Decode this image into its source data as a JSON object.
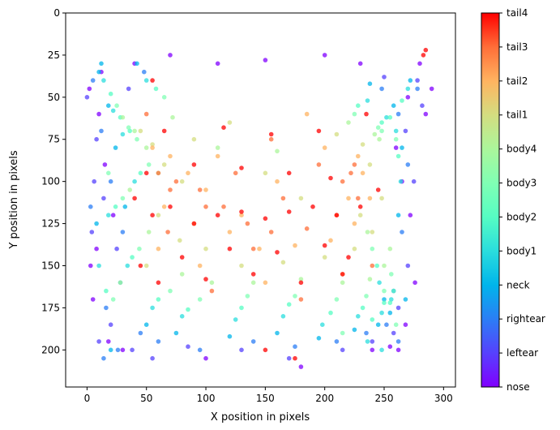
{
  "chart_data": {
    "type": "scatter",
    "title": "",
    "xlabel": "X position in pixels",
    "ylabel": "Y position in pixels",
    "xlim": [
      -18,
      310
    ],
    "ylim": [
      222,
      0
    ],
    "y_inverted": true,
    "x_ticks": [
      0,
      50,
      100,
      150,
      200,
      250,
      300
    ],
    "y_ticks": [
      0,
      25,
      50,
      75,
      100,
      125,
      150,
      175,
      200
    ],
    "grid": false,
    "colormap": "rainbow",
    "colorbar": {
      "position": "right",
      "labels": [
        "nose",
        "leftear",
        "rightear",
        "neck",
        "body1",
        "body2",
        "body3",
        "body4",
        "tail1",
        "tail2",
        "tail3",
        "tail4"
      ]
    },
    "series": [
      {
        "name": "nose",
        "color": "#8000ff",
        "x": [
          2,
          10,
          15,
          22,
          40,
          70,
          110,
          150,
          200,
          230,
          262,
          276,
          285,
          290,
          5,
          18,
          255,
          268,
          272,
          8,
          30,
          100,
          180,
          240,
          265,
          12,
          260,
          270,
          3,
          280
        ],
        "y": [
          45,
          60,
          90,
          120,
          30,
          25,
          30,
          28,
          25,
          30,
          200,
          160,
          60,
          45,
          170,
          195,
          198,
          185,
          120,
          140,
          200,
          205,
          210,
          200,
          100,
          35,
          80,
          50,
          150,
          30
        ]
      },
      {
        "name": "leftear",
        "color": "#5641fd",
        "x": [
          0,
          8,
          14,
          25,
          38,
          55,
          85,
          130,
          170,
          215,
          240,
          258,
          270,
          282,
          4,
          20,
          262,
          275,
          10,
          35,
          250,
          268,
          6,
          278
        ],
        "y": [
          50,
          75,
          110,
          140,
          200,
          205,
          198,
          200,
          205,
          200,
          195,
          190,
          150,
          55,
          130,
          185,
          175,
          100,
          195,
          45,
          38,
          70,
          100,
          40
        ]
      },
      {
        "name": "rightear",
        "color": "#2b7ef5",
        "x": [
          5,
          12,
          20,
          30,
          45,
          60,
          95,
          140,
          175,
          210,
          235,
          252,
          265,
          278,
          3,
          16,
          258,
          270,
          14,
          48,
          248,
          262,
          26,
          262
        ],
        "y": [
          40,
          70,
          100,
          130,
          190,
          195,
          200,
          195,
          198,
          195,
          190,
          185,
          130,
          45,
          115,
          175,
          165,
          90,
          205,
          35,
          45,
          60,
          200,
          195
        ]
      },
      {
        "name": "neck",
        "color": "#00b5eb",
        "x": [
          10,
          18,
          24,
          32,
          50,
          75,
          120,
          160,
          195,
          225,
          245,
          255,
          262,
          272,
          12,
          28,
          250,
          265,
          8,
          42,
          238,
          258,
          20,
          268
        ],
        "y": [
          35,
          55,
          80,
          115,
          185,
          190,
          192,
          190,
          193,
          188,
          185,
          178,
          120,
          40,
          30,
          160,
          170,
          80,
          125,
          30,
          42,
          55,
          200,
          170
        ]
      },
      {
        "name": "body1",
        "color": "#2adddd",
        "x": [
          14,
          22,
          30,
          40,
          55,
          80,
          125,
          165,
          198,
          228,
          248,
          256,
          264,
          270,
          18,
          34,
          246,
          260,
          10,
          50,
          236,
          252,
          236,
          248
        ],
        "y": [
          40,
          58,
          72,
          100,
          175,
          180,
          182,
          180,
          185,
          180,
          178,
          170,
          100,
          45,
          120,
          150,
          160,
          70,
          150,
          40,
          52,
          62,
          195,
          200
        ]
      },
      {
        "name": "body2",
        "color": "#56fdc3",
        "x": [
          20,
          28,
          36,
          45,
          60,
          85,
          130,
          170,
          205,
          232,
          250,
          258,
          262,
          265,
          24,
          38,
          244,
          255,
          16,
          58,
          228,
          248,
          240,
          255
        ],
        "y": [
          48,
          62,
          70,
          95,
          170,
          176,
          175,
          173,
          178,
          175,
          172,
          165,
          85,
          52,
          115,
          145,
          150,
          62,
          165,
          45,
          55,
          65,
          182,
          172
        ]
      },
      {
        "name": "body3",
        "color": "#80ffb4",
        "x": [
          25,
          35,
          42,
          52,
          70,
          95,
          135,
          175,
          210,
          235,
          250,
          256,
          260,
          30,
          44,
          240,
          248,
          22,
          65,
          225,
          245,
          18,
          260,
          215
        ],
        "y": [
          55,
          68,
          75,
          90,
          165,
          170,
          168,
          168,
          170,
          168,
          165,
          155,
          75,
          110,
          140,
          140,
          70,
          170,
          50,
          60,
          68,
          95,
          185,
          190
        ]
      },
      {
        "name": "body4",
        "color": "#abf69b",
        "x": [
          30,
          40,
          50,
          60,
          80,
          105,
          140,
          180,
          215,
          238,
          250,
          255,
          36,
          52,
          236,
          246,
          28,
          72,
          220,
          242,
          110,
          160
        ],
        "y": [
          62,
          70,
          80,
          95,
          155,
          160,
          160,
          158,
          160,
          158,
          150,
          140,
          105,
          130,
          130,
          75,
          160,
          62,
          65,
          72,
          80,
          82
        ]
      },
      {
        "name": "tail1",
        "color": "#d4dd80",
        "x": [
          45,
          55,
          65,
          80,
          100,
          130,
          165,
          200,
          225,
          240,
          248,
          60,
          78,
          230,
          238,
          50,
          90,
          210,
          232,
          150,
          120,
          180
        ],
        "y": [
          70,
          78,
          90,
          100,
          140,
          150,
          148,
          145,
          140,
          130,
          110,
          120,
          135,
          120,
          90,
          150,
          75,
          72,
          78,
          95,
          65,
          110
        ]
      },
      {
        "name": "tail2",
        "color": "#ffb360",
        "x": [
          55,
          70,
          85,
          100,
          120,
          145,
          175,
          205,
          225,
          238,
          65,
          90,
          220,
          232,
          60,
          110,
          200,
          228,
          160,
          130,
          150,
          185,
          95,
          215
        ],
        "y": [
          80,
          85,
          95,
          105,
          130,
          140,
          138,
          135,
          125,
          110,
          115,
          125,
          110,
          95,
          140,
          85,
          80,
          85,
          100,
          120,
          160,
          60,
          150,
          155
        ]
      },
      {
        "name": "tail3",
        "color": "#ff6e38",
        "x": [
          60,
          75,
          95,
          115,
          135,
          155,
          185,
          210,
          228,
          70,
          100,
          215,
          225,
          68,
          125,
          195,
          222,
          165,
          140,
          155,
          105,
          180,
          240,
          50
        ],
        "y": [
          95,
          100,
          105,
          115,
          125,
          130,
          128,
          120,
          110,
          105,
          115,
          100,
          90,
          130,
          95,
          90,
          95,
          110,
          140,
          75,
          165,
          170,
          150,
          60
        ]
      },
      {
        "name": "tail4",
        "color": "#ff0000",
        "x": [
          40,
          55,
          70,
          90,
          110,
          130,
          150,
          170,
          190,
          210,
          230,
          45,
          80,
          120,
          160,
          200,
          220,
          60,
          100,
          140,
          180,
          215,
          50,
          90,
          130,
          170,
          205,
          245,
          65,
          115,
          155,
          195,
          235,
          283,
          285,
          55,
          150,
          175
        ],
        "y": [
          110,
          120,
          115,
          125,
          120,
          118,
          122,
          118,
          115,
          120,
          115,
          150,
          145,
          140,
          142,
          138,
          145,
          160,
          158,
          155,
          160,
          155,
          95,
          90,
          92,
          95,
          98,
          105,
          70,
          68,
          72,
          70,
          60,
          25,
          22,
          40,
          200,
          205
        ]
      }
    ]
  }
}
